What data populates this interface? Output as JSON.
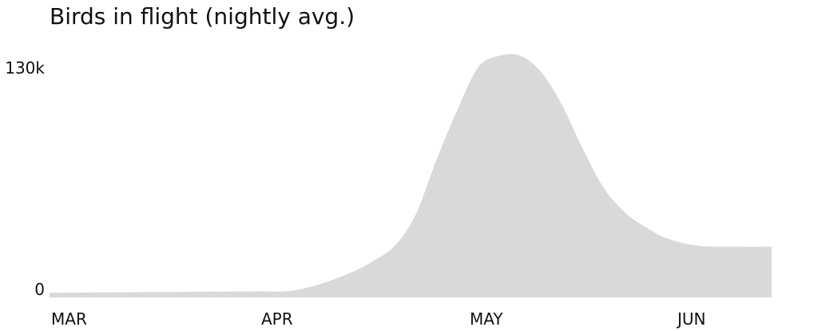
{
  "chart_data": {
    "type": "area",
    "title": "Birds in flight (nightly avg.)",
    "xlabel": "",
    "ylabel": "",
    "x_tick_labels": [
      "MAR",
      "APR",
      "MAY",
      "JUN"
    ],
    "y_tick_labels": [
      "0",
      "130k"
    ],
    "ylim": [
      0,
      130000
    ],
    "color": "#d9d9d9",
    "grid": false,
    "series": [
      {
        "x": [
          0,
          0.25,
          0.5,
          0.75,
          1.0,
          1.15,
          1.3,
          1.45,
          1.55,
          1.65,
          1.75,
          1.85,
          1.95,
          2.05,
          2.15,
          2.25,
          2.35,
          2.45,
          2.55,
          2.65,
          2.75,
          2.85,
          2.95,
          3.1,
          3.3,
          3.45
        ],
        "values": [
          2500,
          2700,
          2900,
          3100,
          3300,
          3500,
          7500,
          14000,
          20000,
          28000,
          45000,
          75000,
          102000,
          125000,
          131000,
          131000,
          122000,
          104000,
          80000,
          59000,
          46000,
          38000,
          32000,
          28000,
          27500,
          27500
        ]
      }
    ]
  }
}
